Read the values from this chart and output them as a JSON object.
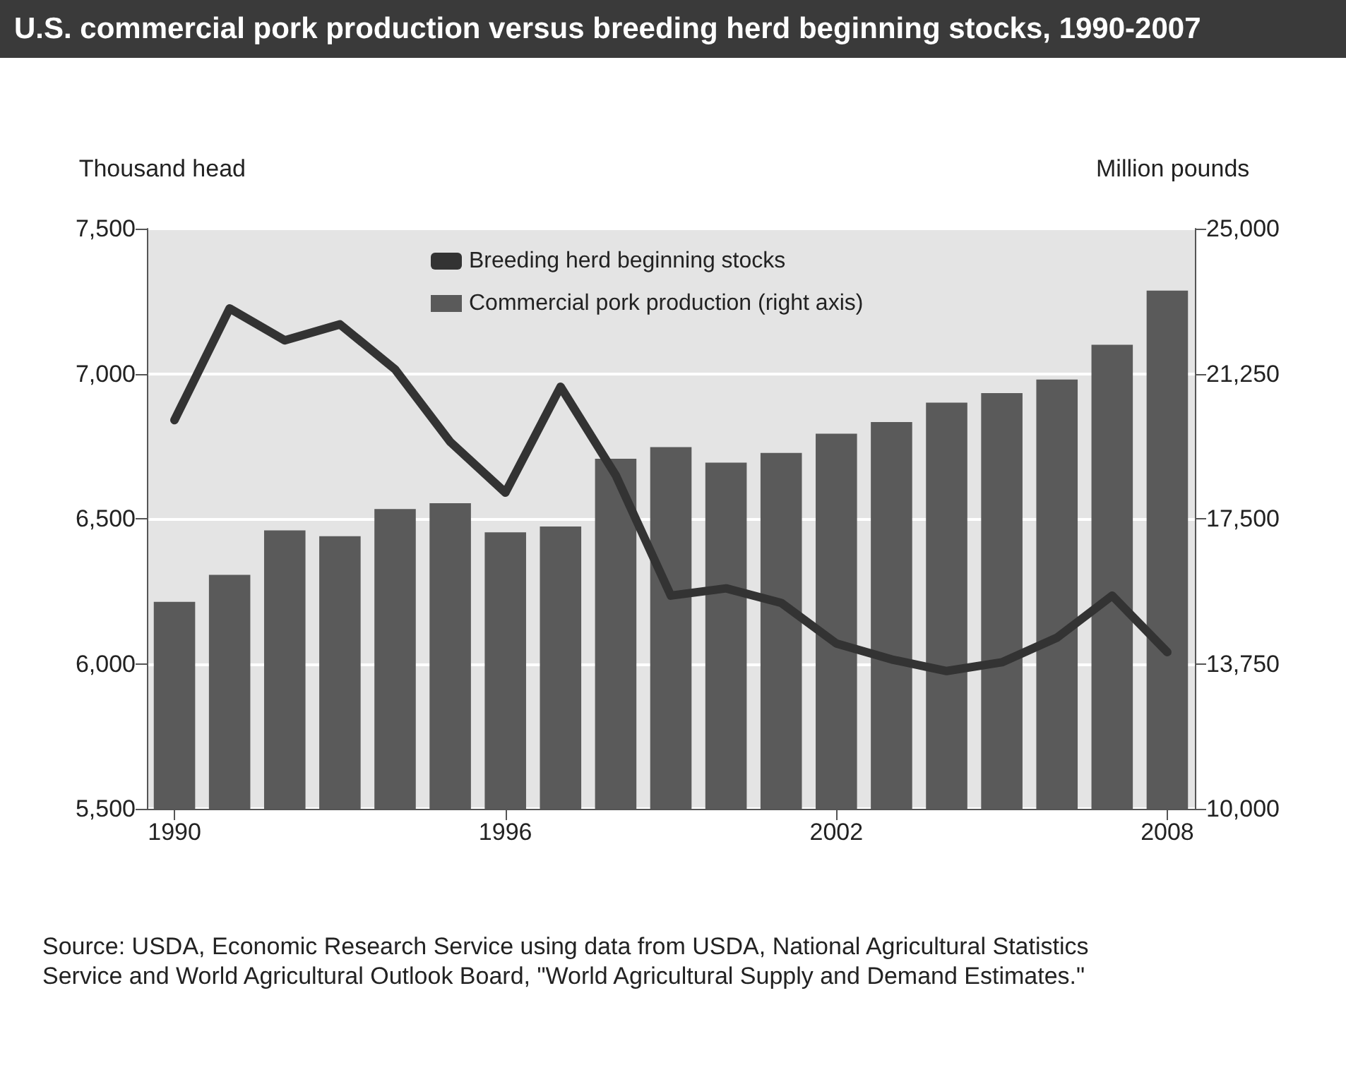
{
  "chart_data": {
    "type": "bar",
    "title": "U.S. commercial pork production versus breeding herd beginning stocks, 1990-2007",
    "ylabel": "Thousand head",
    "y2label": "Million pounds",
    "categories": [
      "1990",
      null,
      null,
      null,
      null,
      null,
      "1996",
      null,
      null,
      null,
      null,
      null,
      "2002",
      null,
      null,
      null,
      null,
      null,
      "2008"
    ],
    "series": [
      {
        "name": "Breeding herd beginning stocks",
        "type": "line",
        "color": "#333333",
        "values": [
          6840,
          7225,
          7115,
          7170,
          7015,
          6765,
          6590,
          6955,
          6650,
          6235,
          6260,
          6210,
          6070,
          6015,
          5975,
          6005,
          6090,
          6235,
          6040
        ]
      },
      {
        "name": "Commercial pork production (right axis)",
        "axis": "y2",
        "color": "#5a5a5a",
        "values": [
          15350,
          16050,
          17200,
          17050,
          17750,
          17900,
          17150,
          17300,
          19050,
          19350,
          18950,
          19200,
          19700,
          20000,
          20500,
          20750,
          21100,
          22000,
          23400
        ]
      }
    ],
    "ylim": [
      5500,
      7500
    ],
    "yticks": [
      {
        "value": 5500,
        "label": "5,500"
      },
      {
        "value": 6000,
        "label": "6,000"
      },
      {
        "value": 6500,
        "label": "6,500"
      },
      {
        "value": 7000,
        "label": "7,000"
      },
      {
        "value": 7500,
        "label": "7,500"
      }
    ],
    "y2lim": [
      10000,
      25000
    ],
    "y2ticks": [
      {
        "value": 10000,
        "label": "10,000"
      },
      {
        "value": 13750,
        "label": "13,750"
      },
      {
        "value": 17500,
        "label": "17,500"
      },
      {
        "value": 21250,
        "label": "21,250"
      },
      {
        "value": 25000,
        "label": "25,000"
      }
    ],
    "grid": "y",
    "legend": "top",
    "marker": "none",
    "line_style": "solid",
    "annotations": [
      "Source: USDA, Economic Research Service using data from USDA, National Agricultural Statistics Service and World Agricultural Outlook Board, \"World Agricultural Supply and Demand Estimates.\""
    ]
  }
}
